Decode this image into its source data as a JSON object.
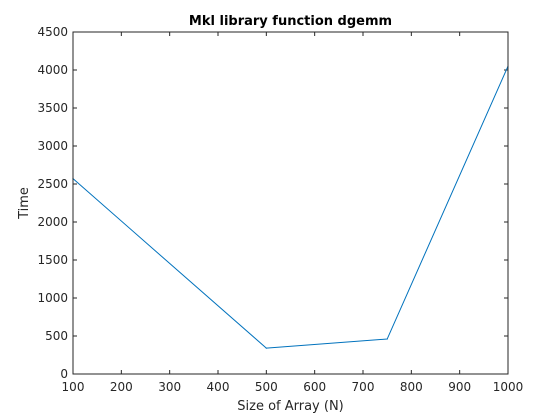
{
  "chart_data": {
    "type": "line",
    "title": "Mkl library function dgemm",
    "xlabel": "Size of Array (N)",
    "ylabel": "Time",
    "xlim": [
      100,
      1000
    ],
    "ylim": [
      0,
      4500
    ],
    "xticks": [
      100,
      200,
      300,
      400,
      500,
      600,
      700,
      800,
      900,
      1000
    ],
    "yticks": [
      0,
      500,
      1000,
      1500,
      2000,
      2500,
      3000,
      3500,
      4000,
      4500
    ],
    "grid": false,
    "legend": "none",
    "series": [
      {
        "color": "#0072bd",
        "x": [
          100,
          500,
          750,
          1000
        ],
        "y": [
          2570,
          340,
          460,
          4050
        ]
      }
    ]
  }
}
